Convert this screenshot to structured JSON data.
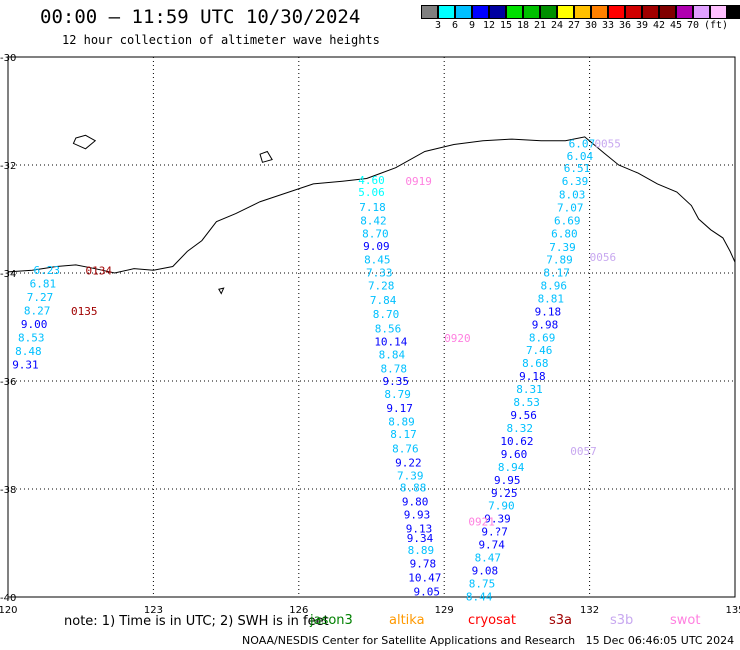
{
  "header": {
    "title": "00:00 – 11:59 UTC 10/30/2024",
    "subtitle": "12 hour collection of altimeter wave heights"
  },
  "colorbar": {
    "colors": [
      "#808080",
      "#00ffff",
      "#00c0ff",
      "#0000ff",
      "#0000a0",
      "#00e000",
      "#00c000",
      "#009000",
      "#ffff00",
      "#ffc000",
      "#ff8000",
      "#ff0000",
      "#d00000",
      "#a00000",
      "#800000",
      "#b000b0",
      "#e0a0ff",
      "#ffc0ff",
      "#000000"
    ],
    "labels": [
      "3",
      "6",
      "9",
      "12",
      "15",
      "18",
      "21",
      "24",
      "27",
      "30",
      "33",
      "36",
      "39",
      "42",
      "45",
      "70",
      "(ft)"
    ]
  },
  "map": {
    "lon_ticks": [
      "120",
      "123",
      "126",
      "129",
      "132",
      "135"
    ],
    "lat_ticks": [
      "-30",
      "-32",
      "-34",
      "-36",
      "-38",
      "-40"
    ],
    "pass_labels": [
      {
        "text": "0055",
        "color": "#c8a8f0"
      },
      {
        "text": "0056",
        "color": "#c8a8f0"
      },
      {
        "text": "0057",
        "color": "#c8a8f0"
      },
      {
        "text": "0919",
        "color": "#ff80e0"
      },
      {
        "text": "0920",
        "color": "#ff80e0"
      },
      {
        "text": "0921",
        "color": "#ff80e0"
      },
      {
        "text": "0134",
        "color": "#a00000"
      },
      {
        "text": "0135",
        "color": "#a00000"
      }
    ],
    "tracks": [
      {
        "name": "swot-0919-0921",
        "points": [
          {
            "lon": 127.5,
            "lat": -32.28,
            "v": "4.60"
          },
          {
            "lon": 127.5,
            "lat": -32.5,
            "v": "5.06"
          },
          {
            "lon": 127.52,
            "lat": -32.78,
            "v": "7.18"
          },
          {
            "lon": 127.54,
            "lat": -33.03,
            "v": "8.42"
          },
          {
            "lon": 127.58,
            "lat": -33.27,
            "v": "8.70"
          },
          {
            "lon": 127.6,
            "lat": -33.5,
            "v": "9.09"
          },
          {
            "lon": 127.62,
            "lat": -33.75,
            "v": "8.45"
          },
          {
            "lon": 127.66,
            "lat": -33.99,
            "v": "7.33"
          },
          {
            "lon": 127.7,
            "lat": -34.23,
            "v": "7.28"
          },
          {
            "lon": 127.74,
            "lat": -34.5,
            "v": "7.84"
          },
          {
            "lon": 127.8,
            "lat": -34.76,
            "v": "8.70"
          },
          {
            "lon": 127.84,
            "lat": -35.03,
            "v": "8.56"
          },
          {
            "lon": 127.9,
            "lat": -35.27,
            "v": "10.14"
          },
          {
            "lon": 127.92,
            "lat": -35.51,
            "v": "8.84"
          },
          {
            "lon": 127.96,
            "lat": -35.77,
            "v": "8.78"
          },
          {
            "lon": 128.0,
            "lat": -36.0,
            "v": "9.35"
          },
          {
            "lon": 128.04,
            "lat": -36.24,
            "v": "8.79"
          },
          {
            "lon": 128.08,
            "lat": -36.5,
            "v": "9.17"
          },
          {
            "lon": 128.12,
            "lat": -36.75,
            "v": "8.89"
          },
          {
            "lon": 128.16,
            "lat": -36.98,
            "v": "8.17"
          },
          {
            "lon": 128.2,
            "lat": -37.25,
            "v": "8.76"
          },
          {
            "lon": 128.26,
            "lat": -37.51,
            "v": "9.22"
          },
          {
            "lon": 128.3,
            "lat": -37.75,
            "v": "7.39"
          },
          {
            "lon": 128.36,
            "lat": -37.97,
            "v": "8.88"
          },
          {
            "lon": 128.4,
            "lat": -38.23,
            "v": "9.80"
          },
          {
            "lon": 128.44,
            "lat": -38.47,
            "v": "9.93"
          },
          {
            "lon": 128.48,
            "lat": -38.73,
            "v": "9.13"
          },
          {
            "lon": 128.5,
            "lat": -38.91,
            "v": "9.34"
          },
          {
            "lon": 128.52,
            "lat": -39.13,
            "v": "8.89"
          },
          {
            "lon": 128.56,
            "lat": -39.38,
            "v": "9.78"
          },
          {
            "lon": 128.6,
            "lat": -39.64,
            "v": "10.47"
          },
          {
            "lon": 128.64,
            "lat": -39.9,
            "v": "9.05"
          }
        ]
      },
      {
        "name": "s3b-0055-0057",
        "points": [
          {
            "lon": 131.84,
            "lat": -31.6,
            "v": "6.07"
          },
          {
            "lon": 131.8,
            "lat": -31.83,
            "v": "6.04"
          },
          {
            "lon": 131.74,
            "lat": -32.06,
            "v": "6.51"
          },
          {
            "lon": 131.7,
            "lat": -32.3,
            "v": "6.39"
          },
          {
            "lon": 131.64,
            "lat": -32.55,
            "v": "8.03"
          },
          {
            "lon": 131.6,
            "lat": -32.79,
            "v": "7.07"
          },
          {
            "lon": 131.54,
            "lat": -33.03,
            "v": "6.69"
          },
          {
            "lon": 131.48,
            "lat": -33.27,
            "v": "6.80"
          },
          {
            "lon": 131.44,
            "lat": -33.52,
            "v": "7.39"
          },
          {
            "lon": 131.38,
            "lat": -33.75,
            "v": "7.89"
          },
          {
            "lon": 131.32,
            "lat": -33.99,
            "v": "8.17"
          },
          {
            "lon": 131.26,
            "lat": -34.23,
            "v": "8.96"
          },
          {
            "lon": 131.2,
            "lat": -34.47,
            "v": "8.81"
          },
          {
            "lon": 131.14,
            "lat": -34.71,
            "v": "9.18"
          },
          {
            "lon": 131.08,
            "lat": -34.95,
            "v": "9.98"
          },
          {
            "lon": 131.02,
            "lat": -35.19,
            "v": "8.69"
          },
          {
            "lon": 130.96,
            "lat": -35.43,
            "v": "7.46"
          },
          {
            "lon": 130.88,
            "lat": -35.67,
            "v": "8.68"
          },
          {
            "lon": 130.82,
            "lat": -35.91,
            "v": "9.18"
          },
          {
            "lon": 130.76,
            "lat": -36.15,
            "v": "8.31"
          },
          {
            "lon": 130.7,
            "lat": -36.39,
            "v": "8.53"
          },
          {
            "lon": 130.64,
            "lat": -36.63,
            "v": "9.56"
          },
          {
            "lon": 130.56,
            "lat": -36.87,
            "v": "8.32"
          },
          {
            "lon": 130.5,
            "lat": -37.11,
            "v": "10.62"
          },
          {
            "lon": 130.44,
            "lat": -37.35,
            "v": "9.60"
          },
          {
            "lon": 130.38,
            "lat": -37.59,
            "v": "8.94"
          },
          {
            "lon": 130.3,
            "lat": -37.83,
            "v": "9.95"
          },
          {
            "lon": 130.24,
            "lat": -38.07,
            "v": "9.25"
          },
          {
            "lon": 130.18,
            "lat": -38.31,
            "v": "7.90"
          },
          {
            "lon": 130.1,
            "lat": -38.55,
            "v": "9.39"
          },
          {
            "lon": 130.04,
            "lat": -38.79,
            "v": "9.?7"
          },
          {
            "lon": 129.98,
            "lat": -39.03,
            "v": "9.74"
          },
          {
            "lon": 129.9,
            "lat": -39.27,
            "v": "8.47"
          },
          {
            "lon": 129.84,
            "lat": -39.51,
            "v": "9.08"
          },
          {
            "lon": 129.78,
            "lat": -39.75,
            "v": "8.75"
          },
          {
            "lon": 129.72,
            "lat": -39.99,
            "v": "8.44"
          }
        ]
      },
      {
        "name": "s3a-0134-0135",
        "points": [
          {
            "lon": 120.8,
            "lat": -33.94,
            "v": "6.23"
          },
          {
            "lon": 120.72,
            "lat": -34.19,
            "v": "6.81"
          },
          {
            "lon": 120.66,
            "lat": -34.44,
            "v": "7.27"
          },
          {
            "lon": 120.6,
            "lat": -34.69,
            "v": "8.27"
          },
          {
            "lon": 120.54,
            "lat": -34.94,
            "v": "9.00"
          },
          {
            "lon": 120.48,
            "lat": -35.19,
            "v": "8.53"
          },
          {
            "lon": 120.42,
            "lat": -35.44,
            "v": "8.48"
          },
          {
            "lon": 120.36,
            "lat": -35.69,
            "v": "9.31"
          }
        ]
      }
    ]
  },
  "note": "note: 1) Time is in UTC; 2) SWH is in feet",
  "legend": [
    {
      "name": "jason3",
      "color": "#008000"
    },
    {
      "name": "altika",
      "color": "#ff9900"
    },
    {
      "name": "cryosat",
      "color": "#ff0000"
    },
    {
      "name": "s3a",
      "color": "#a00000"
    },
    {
      "name": "s3b",
      "color": "#c8a8f0"
    },
    {
      "name": "swot",
      "color": "#ff80e0"
    }
  ],
  "footer": "NOAA/NESDIS Center for Satellite Applications and Research   15 Dec 06:46:05 UTC 2024"
}
